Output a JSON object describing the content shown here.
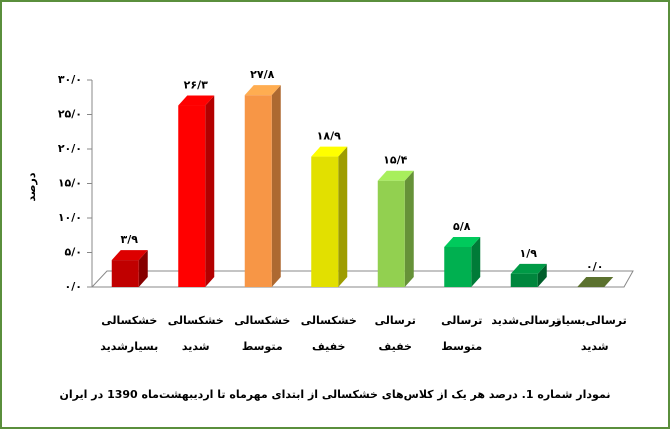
{
  "chart_data": {
    "type": "bar3d",
    "title": "نمودار شماره 1. درصد هر یک از کلاس‌های خشکسالی از ابتدای مهرماه تا اردیبهشت‌ماه 1390 در ایران",
    "y_label": "درصد",
    "categories": [
      "خشکسالی بسیارشدید",
      "خشکسالی شدید",
      "خشکسالی متوسط",
      "خشکسالی خفیف",
      "ترسالی خفیف",
      "ترسالی متوسط",
      "ترسالی‌شدید",
      "ترسالی‌بسیار شدید"
    ],
    "values": [
      3.9,
      26.3,
      27.8,
      18.9,
      15.4,
      5.8,
      1.9,
      0.0
    ],
    "value_labels": [
      "۳/۹",
      "۲۶/۳",
      "۲۷/۸",
      "۱۸/۹",
      "۱۵/۴",
      "۵/۸",
      "۱/۹",
      "۰/۰"
    ],
    "colors": [
      "#c00000",
      "#ff0000",
      "#f79646",
      "#e2e000",
      "#92d050",
      "#00b050",
      "#00863d",
      "#4f6228"
    ],
    "ylim": [
      0,
      30
    ],
    "yticks": [
      {
        "value": 0,
        "label": "۰/۰"
      },
      {
        "value": 5,
        "label": "۵/۰"
      },
      {
        "value": 10,
        "label": "۱۰/۰"
      },
      {
        "value": 15,
        "label": "۱۵/۰"
      },
      {
        "value": 20,
        "label": "۲۰/۰"
      },
      {
        "value": 25,
        "label": "۲۵/۰"
      },
      {
        "value": 30,
        "label": "۳۰/۰"
      }
    ]
  }
}
